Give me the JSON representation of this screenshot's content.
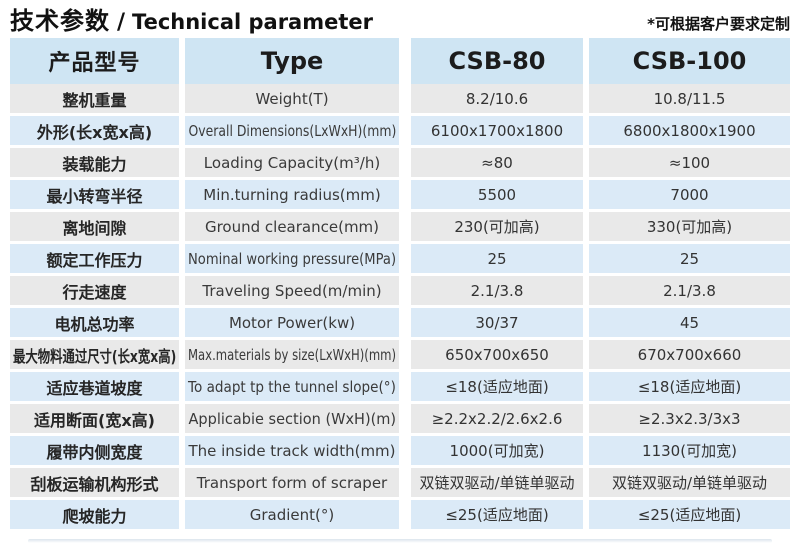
{
  "page": {
    "title_cn": "技术参数",
    "title_sep": "/",
    "title_en": "Technical parameter",
    "note": "*可根据客户要求定制"
  },
  "table": {
    "headers": {
      "col_model": "产品型号",
      "col_type": "Type",
      "col_csb80": "CSB-80",
      "col_csb100": "CSB-100"
    },
    "rows": [
      {
        "cn": "整机重量",
        "en": "Weight(T)",
        "csb80": "8.2/10.6",
        "csb100": "10.8/11.5"
      },
      {
        "cn": "外形(长x宽x高)",
        "en": "Overall Dimensions(LxWxH)(mm)",
        "csb80": "6100x1700x1800",
        "csb100": "6800x1800x1900"
      },
      {
        "cn": "装载能力",
        "en": "Loading Capacity(m³/h)",
        "csb80": "≈80",
        "csb100": "≈100"
      },
      {
        "cn": "最小转弯半径",
        "en": "Min.turning radius(mm)",
        "csb80": "5500",
        "csb100": "7000"
      },
      {
        "cn": "离地间隙",
        "en": "Ground clearance(mm)",
        "csb80": "230(可加高)",
        "csb100": "330(可加高)"
      },
      {
        "cn": "额定工作压力",
        "en": "Nominal working pressure(MPa)",
        "csb80": "25",
        "csb100": "25"
      },
      {
        "cn": "行走速度",
        "en": "Traveling Speed(m/min)",
        "csb80": "2.1/3.8",
        "csb100": "2.1/3.8"
      },
      {
        "cn": "电机总功率",
        "en": "Motor Power(kw)",
        "csb80": "30/37",
        "csb100": "45"
      },
      {
        "cn": "最大物料通过尺寸(长x宽x高)",
        "en": "Max.materials by size(LxWxH)(mm)",
        "csb80": "650x700x650",
        "csb100": "670x700x660"
      },
      {
        "cn": "适应巷道坡度",
        "en": "To adapt tp the tunnel slope(°)",
        "csb80": "≤18(适应地面)",
        "csb100": "≤18(适应地面)"
      },
      {
        "cn": "适用断面(宽x高)",
        "en": "Applicabie section (WxH)(m)",
        "csb80": "≥2.2x2.2/2.6x2.6",
        "csb100": "≥2.3x2.3/3x3"
      },
      {
        "cn": "履带内侧宽度",
        "en": "The inside track width(mm)",
        "csb80": "1000(可加宽)",
        "csb100": "1130(可加宽)"
      },
      {
        "cn": "刮板运输机构形式",
        "en": "Transport form of scraper",
        "csb80": "双链双驱动/单链单驱动",
        "csb100": "双链双驱动/单链单驱动"
      },
      {
        "cn": "爬坡能力",
        "en": "Gradient(°)",
        "csb80": "≤25(适应地面)",
        "csb100": "≤25(适应地面)"
      }
    ]
  },
  "colors": {
    "header_bg": "#cfe5f3",
    "row_blue": "#dbeaf7",
    "row_gray": "#e9e9e9",
    "title_color": "#111111"
  }
}
